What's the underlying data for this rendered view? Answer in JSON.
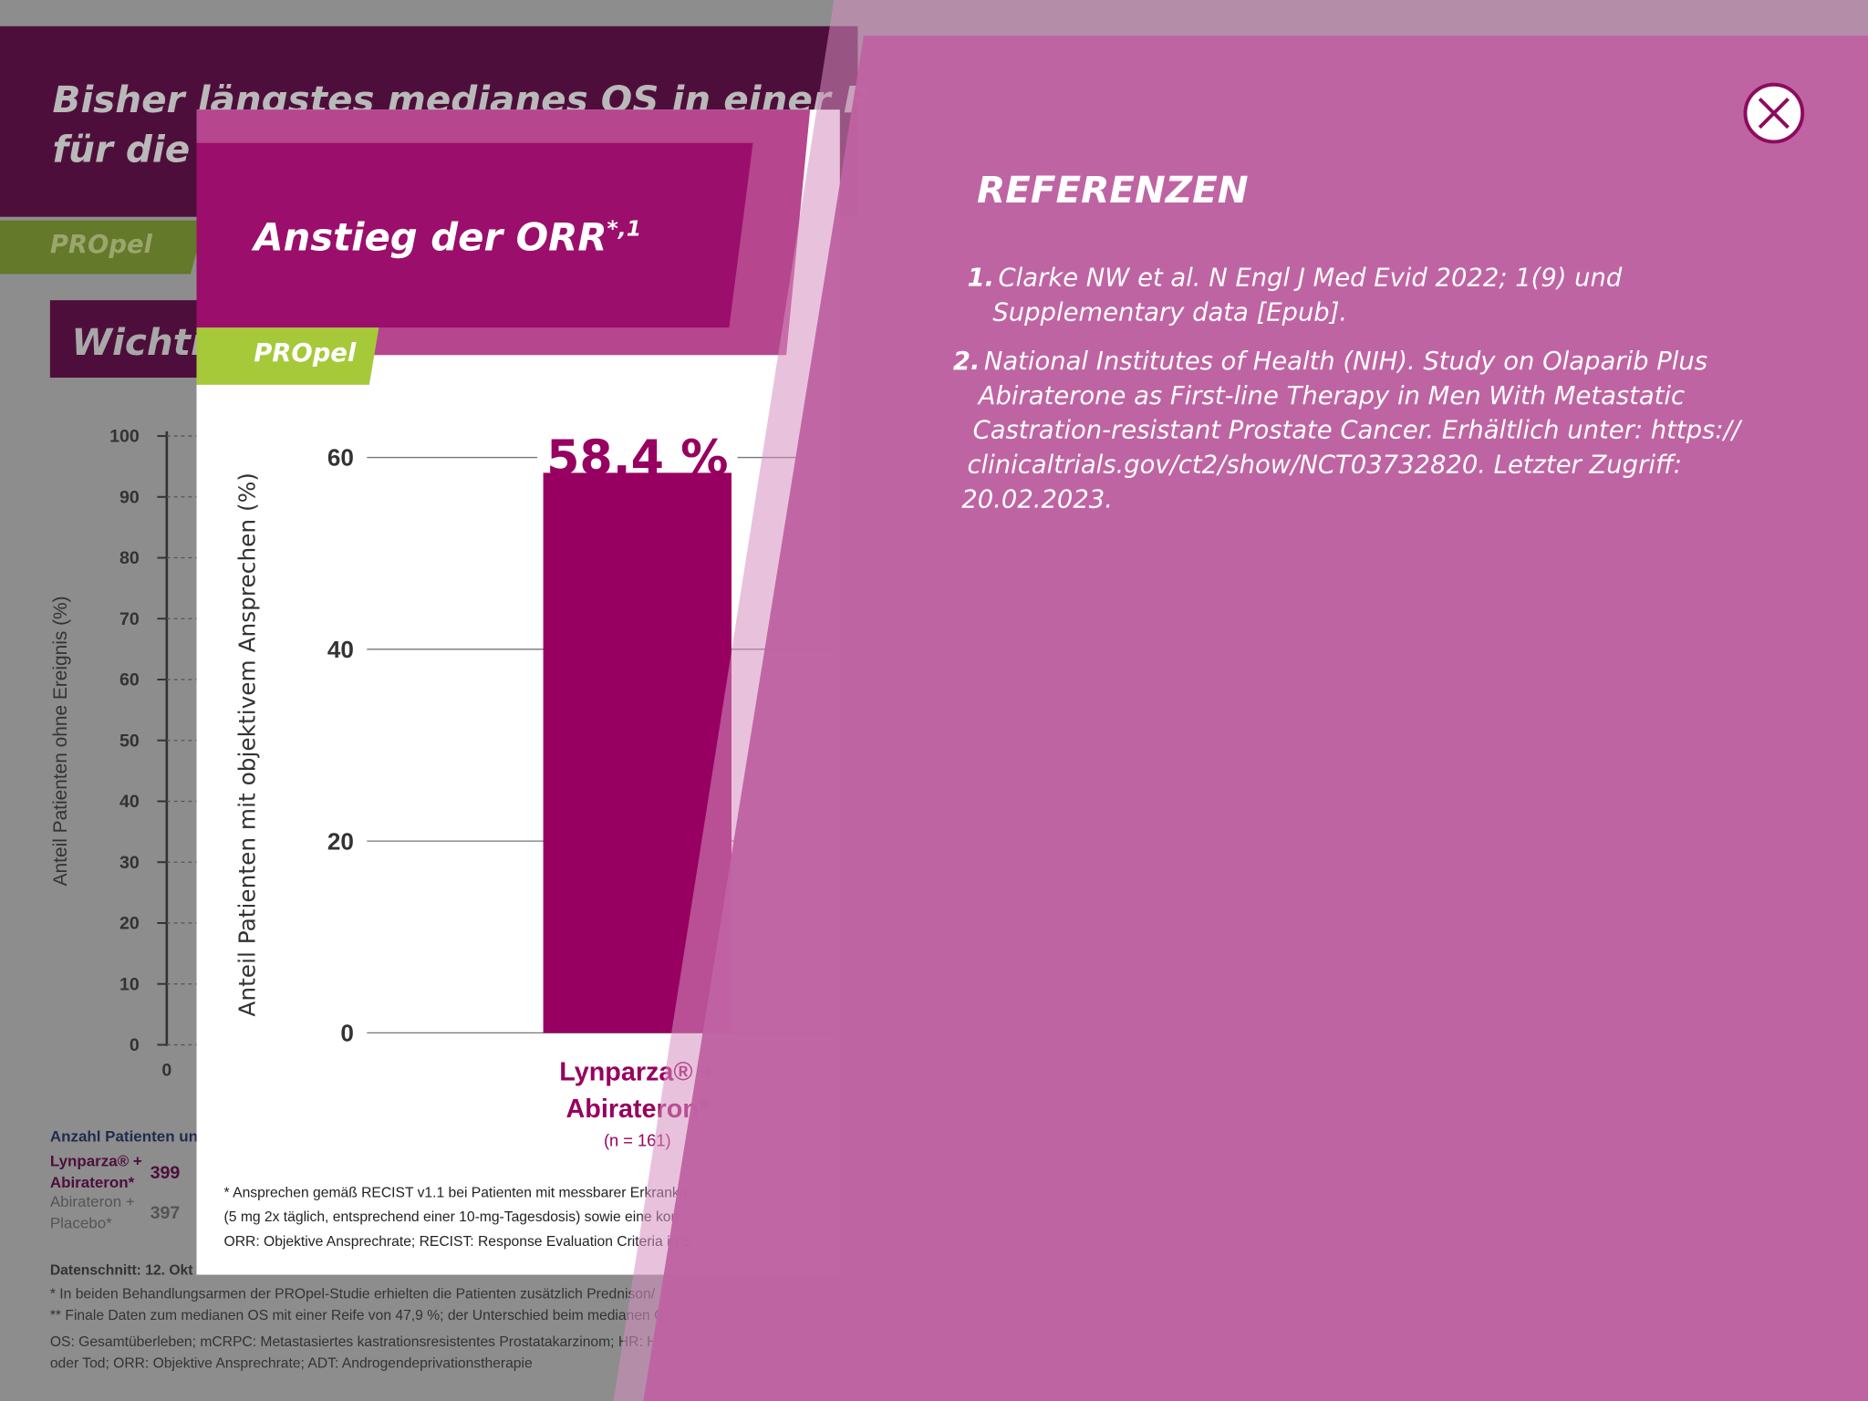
{
  "background": {
    "title_lines": [
      "Bisher längstes medianes OS in einer P",
      "für die"
    ],
    "tag": "PROpel",
    "section": "Wichti",
    "chart": {
      "y_label": "Anteil Patienten ohne Ereignis (%)",
      "ylim": [
        0,
        100
      ],
      "yticks": [
        0,
        10,
        20,
        30,
        40,
        50,
        60,
        70,
        80,
        90,
        100
      ],
      "xtick": 0
    },
    "risk_table": {
      "heading": "Anzahl Patienten unt",
      "rows": [
        {
          "arm": [
            "Lynparza® +",
            "Abirateron*"
          ],
          "n": 399
        },
        {
          "arm": [
            "Abirateron +",
            "Placebo*"
          ],
          "n": 397
        }
      ]
    },
    "notes": [
      "Datenschnitt: 12. Okt",
      "* In beiden Behandlungsarmen der PROpel-Studie erhielten die Patienten zusätzlich Prednison/",
      "** Finale Daten zum medianen OS mit einer Reife von 47,9 %; der Unterschied beim medianen OS",
      "OS: Gesamtüberleben; mCRPC: Metastasiertes kastrationsresistentes Prostatakarzinom; HR: Haz",
      "oder Tod; ORR: Objektive Ansprechrate; ADT: Androgendeprivationstherapie"
    ]
  },
  "popup": {
    "title": "Anstieg der ORR",
    "title_sup": "*,1",
    "tag": "PROpel",
    "chart_data": {
      "type": "bar",
      "y_label": "Anteil Patienten mit objektivem Ansprechen (%)",
      "categories": [
        "Lynparza® + Abirateron*"
      ],
      "category_notes": [
        "(n = 161)"
      ],
      "values": [
        58.4
      ],
      "value_labels": [
        "58,4 %"
      ],
      "color": "#970060",
      "ylim": [
        0,
        60
      ],
      "yticks": [
        0,
        20,
        40,
        60
      ],
      "grid": true
    },
    "footnotes": [
      "* Ansprechen gemäß RECIST v1.1 bei Patienten mit messbarer Erkranku",
      "(5 mg 2x täglich, entsprechend einer 10-mg-Tagesdosis) sowie eine kon",
      "ORR: Objektive Ansprechrate; RECIST: Response Evaluation Criteria in S"
    ]
  },
  "references": {
    "heading": "REFERENZEN",
    "items": [
      {
        "number": "1.",
        "lines": [
          "Clarke NW et al. N Engl J Med Evid 2022; 1(9) und",
          "Supplementary data [Epub]."
        ]
      },
      {
        "number": "2.",
        "lines": [
          "National Institutes of Health (NIH). Study on Olaparib Plus",
          "Abiraterone as First-line Therapy in Men With Metastatic",
          "Castration-resistant Prostate Cancer. Erhältlich unter: https://",
          "clinicaltrials.gov/ct2/show/NCT03732820. Letzter Zugriff:",
          "20.02.2023."
        ]
      }
    ]
  }
}
